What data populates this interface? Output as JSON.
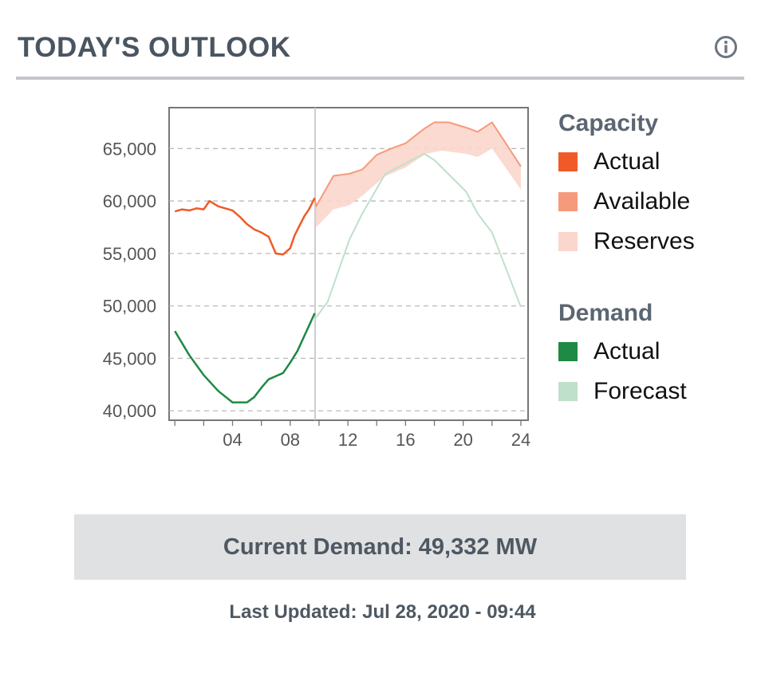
{
  "header": {
    "title": "TODAY'S OUTLOOK",
    "info_icon": "info-circle-icon"
  },
  "legend": {
    "capacity_heading": "Capacity",
    "capacity_items": [
      {
        "label": "Actual",
        "color": "#f05a28"
      },
      {
        "label": "Available",
        "color": "#f59a7c"
      },
      {
        "label": "Reserves",
        "color": "#fbd6cc"
      }
    ],
    "demand_heading": "Demand",
    "demand_items": [
      {
        "label": "Actual",
        "color": "#1e8a44"
      },
      {
        "label": "Forecast",
        "color": "#bfe0cb"
      }
    ]
  },
  "current_demand": "Current Demand: 49,332 MW",
  "last_updated": "Last Updated: Jul 28, 2020 - 09:44",
  "chart_data": {
    "type": "line",
    "xlabel": "",
    "ylabel": "",
    "xlim": [
      -0.4,
      24.5
    ],
    "ylim": [
      39100,
      68900
    ],
    "grid": "horizontal dashed",
    "legend_placement": "right",
    "x_ticks": [
      4,
      8,
      12,
      16,
      20,
      24
    ],
    "x_tick_labels": [
      "04",
      "08",
      "12",
      "16",
      "20",
      "24"
    ],
    "y_ticks": [
      40000,
      45000,
      50000,
      55000,
      60000,
      65000
    ],
    "y_tick_labels": [
      "40,000",
      "45,000",
      "50,000",
      "55,000",
      "60,000",
      "65,000"
    ],
    "current_time_hour": 9.73,
    "series": [
      {
        "name": "Capacity Actual",
        "color": "#f05a28",
        "x": [
          0,
          0.5,
          1,
          1.5,
          2,
          2.4,
          3,
          3.5,
          4,
          4.5,
          5,
          5.5,
          6,
          6.5,
          7,
          7.5,
          8,
          8.3,
          8.7,
          9,
          9.3,
          9.7
        ],
        "y": [
          59000,
          59200,
          59100,
          59300,
          59200,
          60000,
          59500,
          59300,
          59100,
          58500,
          57800,
          57300,
          57000,
          56600,
          55000,
          54900,
          55500,
          56700,
          57800,
          58600,
          59200,
          60300
        ]
      },
      {
        "name": "Capacity Available",
        "color": "#f59a7c",
        "x": [
          9.7,
          9.8,
          11,
          12.1,
          13,
          14,
          15,
          16,
          17.3,
          18,
          19,
          20.2,
          21,
          22,
          24
        ],
        "y": [
          60200,
          59500,
          62400,
          62600,
          63000,
          64400,
          65000,
          65500,
          66900,
          67500,
          67500,
          67000,
          66600,
          67500,
          63300
        ]
      },
      {
        "name": "Reserves lower bound",
        "color": "#fbd6cc",
        "x": [
          9.7,
          9.8,
          11,
          12.1,
          13,
          14.5,
          16,
          17.4,
          18.5,
          20.2,
          21,
          22,
          24
        ],
        "y": [
          60200,
          57500,
          59200,
          59600,
          60500,
          62300,
          63200,
          64500,
          64800,
          64500,
          64200,
          65000,
          61100
        ]
      },
      {
        "name": "Demand Actual",
        "color": "#1e8a44",
        "x": [
          0,
          1,
          2,
          3,
          4,
          5,
          5.5,
          6,
          6.5,
          7,
          7.5,
          8,
          8.5,
          9,
          9.7
        ],
        "y": [
          47600,
          45300,
          43400,
          41900,
          40800,
          40800,
          41300,
          42200,
          43000,
          43300,
          43600,
          44600,
          45700,
          47200,
          49300
        ]
      },
      {
        "name": "Demand Forecast",
        "color": "#bfe0cb",
        "x": [
          9.8,
          10.6,
          12.1,
          13,
          14.6,
          17.3,
          18,
          20.2,
          21,
          22,
          24
        ],
        "y": [
          48900,
          50400,
          56300,
          58800,
          62600,
          64500,
          63900,
          60900,
          58800,
          57000,
          49900
        ]
      }
    ]
  }
}
